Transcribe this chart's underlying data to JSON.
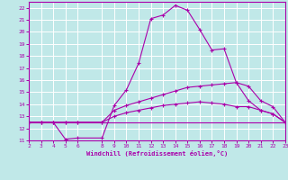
{
  "xlabel": "Windchill (Refroidissement éolien,°C)",
  "background_color": "#c0e8e8",
  "grid_color": "#ffffff",
  "line_color": "#aa00aa",
  "xlim": [
    2,
    23
  ],
  "ylim": [
    11,
    22.5
  ],
  "xticks": [
    2,
    3,
    4,
    5,
    6,
    8,
    9,
    10,
    11,
    12,
    13,
    14,
    15,
    16,
    17,
    18,
    19,
    20,
    21,
    22,
    23
  ],
  "yticks": [
    11,
    12,
    13,
    14,
    15,
    16,
    17,
    18,
    19,
    20,
    21,
    22
  ],
  "line1_x": [
    2,
    3,
    4,
    5,
    6,
    8,
    9,
    10,
    11,
    12,
    13,
    14,
    15,
    16,
    17,
    18,
    19,
    20,
    21,
    22,
    23
  ],
  "line1_y": [
    12.5,
    12.5,
    12.5,
    11.1,
    11.2,
    11.2,
    13.9,
    15.2,
    17.4,
    21.1,
    21.4,
    22.2,
    21.8,
    20.2,
    18.5,
    18.6,
    15.8,
    14.3,
    13.5,
    13.2,
    12.5
  ],
  "line2_x": [
    2,
    3,
    4,
    5,
    6,
    8,
    9,
    10,
    11,
    12,
    13,
    14,
    15,
    16,
    17,
    18,
    19,
    20,
    21,
    22,
    23
  ],
  "line2_y": [
    12.5,
    12.5,
    12.5,
    12.5,
    12.5,
    12.5,
    13.5,
    13.9,
    14.2,
    14.5,
    14.8,
    15.1,
    15.4,
    15.5,
    15.6,
    15.7,
    15.8,
    15.5,
    14.3,
    13.8,
    12.5
  ],
  "line3_x": [
    2,
    3,
    4,
    5,
    6,
    8,
    9,
    10,
    11,
    12,
    13,
    14,
    15,
    16,
    17,
    18,
    19,
    20,
    21,
    22,
    23
  ],
  "line3_y": [
    12.5,
    12.5,
    12.5,
    12.5,
    12.5,
    12.5,
    13.0,
    13.3,
    13.5,
    13.7,
    13.9,
    14.0,
    14.1,
    14.2,
    14.1,
    14.0,
    13.8,
    13.8,
    13.5,
    13.2,
    12.5
  ],
  "line4_x": [
    2,
    23
  ],
  "line4_y": [
    12.5,
    12.5
  ]
}
